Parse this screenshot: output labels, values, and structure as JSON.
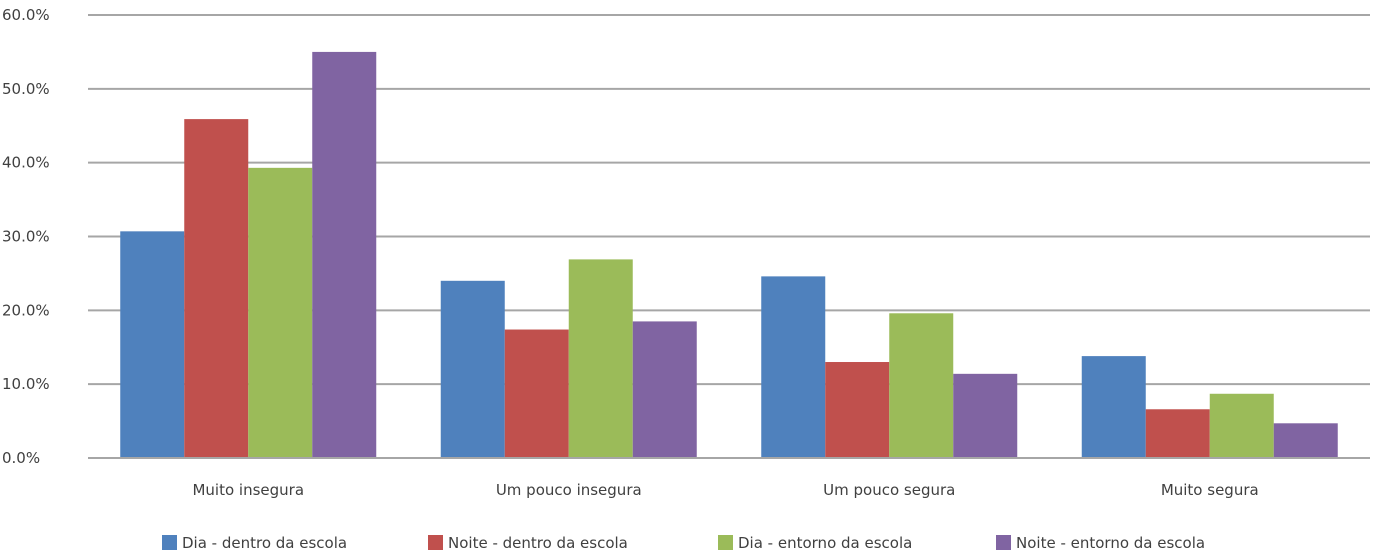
{
  "chart_data": {
    "type": "bar",
    "categories": [
      "Muito insegura",
      "Um pouco insegura",
      "Um pouco segura",
      "Muito segura"
    ],
    "series": [
      {
        "name": "Dia - dentro da escola",
        "color": "#4f81bd",
        "values": [
          30.7,
          24.0,
          24.6,
          13.8
        ]
      },
      {
        "name": "Noite - dentro da escola",
        "color": "#c0504d",
        "values": [
          45.9,
          17.4,
          13.0,
          6.6
        ]
      },
      {
        "name": "Dia - entorno da escola",
        "color": "#9bbb59",
        "values": [
          39.3,
          26.9,
          19.6,
          8.7
        ]
      },
      {
        "name": "Noite - entorno da escola",
        "color": "#8064a2",
        "values": [
          55.0,
          18.5,
          11.4,
          4.7
        ]
      }
    ],
    "y_ticks": [
      "0.0%",
      "10.0%",
      "20.0%",
      "30.0%",
      "40.0%",
      "50.0%",
      "60.0%"
    ],
    "ylim": [
      0,
      60
    ],
    "grid": true,
    "legend_position": "bottom"
  }
}
